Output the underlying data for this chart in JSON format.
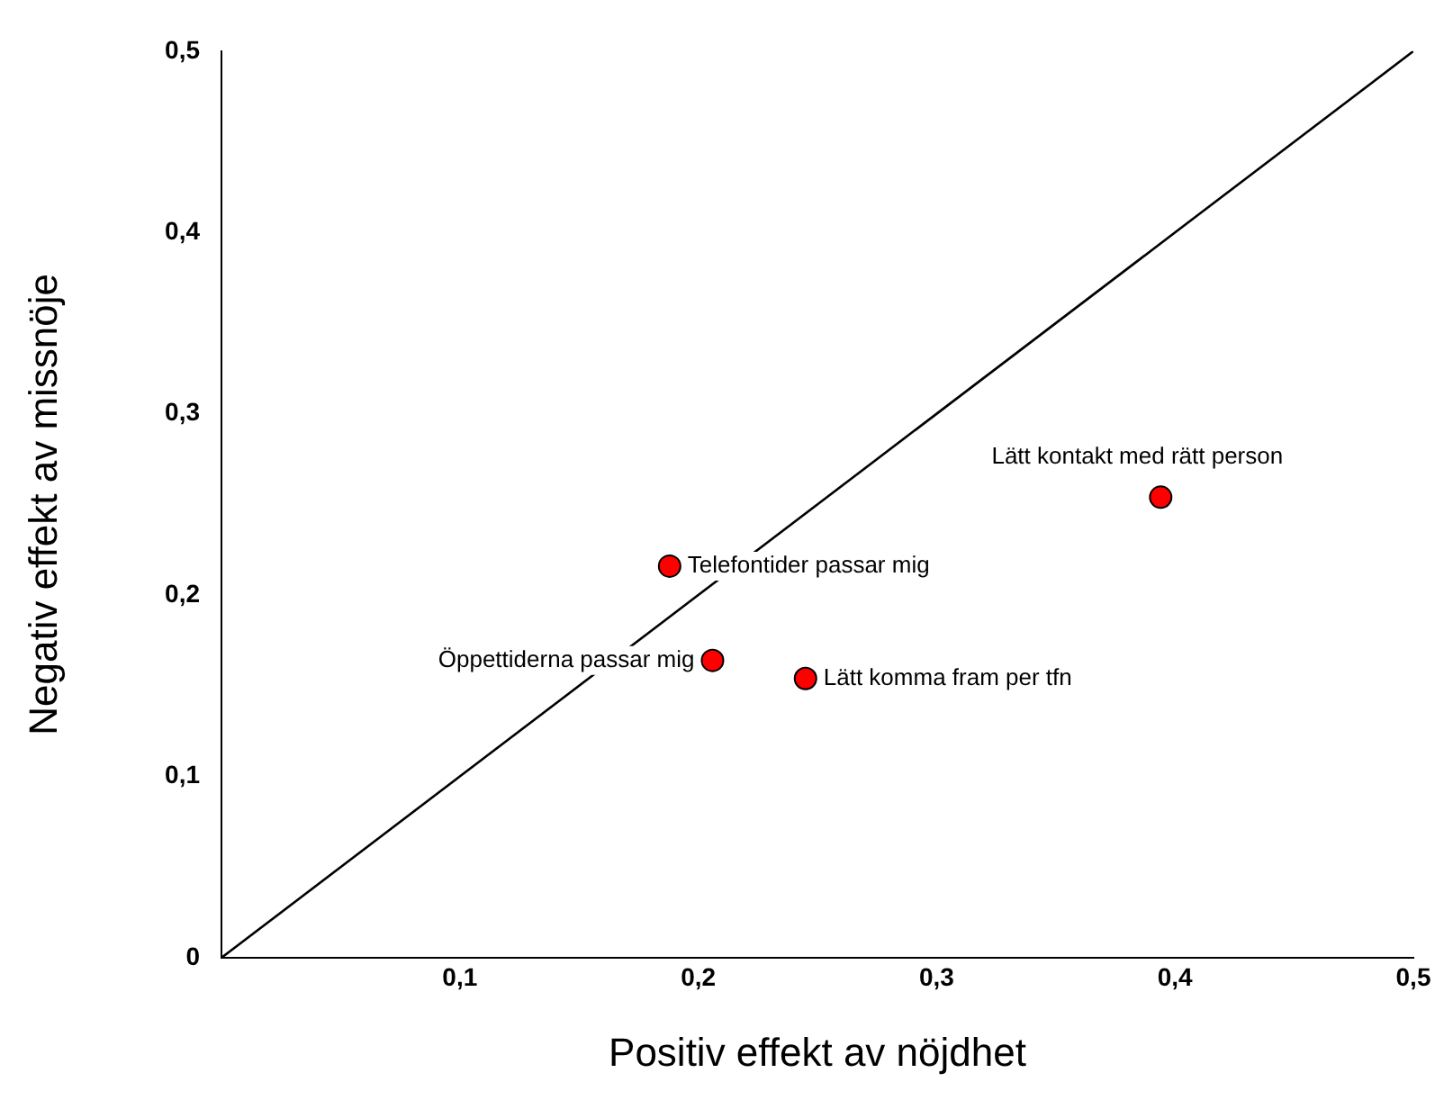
{
  "chart_data": {
    "type": "scatter",
    "xlabel": "Positiv effekt av nöjdhet",
    "ylabel": "Negativ effekt av missnöje",
    "xlim": [
      0,
      0.5
    ],
    "ylim": [
      0,
      0.5
    ],
    "xticks": [
      {
        "value": 0.1,
        "label": "0,1"
      },
      {
        "value": 0.2,
        "label": "0,2"
      },
      {
        "value": 0.3,
        "label": "0,3"
      },
      {
        "value": 0.4,
        "label": "0,4"
      },
      {
        "value": 0.5,
        "label": "0,5"
      }
    ],
    "yticks": [
      {
        "value": 0,
        "label": "0"
      },
      {
        "value": 0.1,
        "label": "0,1"
      },
      {
        "value": 0.2,
        "label": "0,2"
      },
      {
        "value": 0.3,
        "label": "0,3"
      },
      {
        "value": 0.4,
        "label": "0,4"
      },
      {
        "value": 0.5,
        "label": "0,5"
      }
    ],
    "grid": false,
    "legend": false,
    "marker": "circle",
    "series": [
      {
        "type": "scatter",
        "color": "#ff0000",
        "x": [
          0.394,
          0.188,
          0.206,
          0.245
        ],
        "values": [
          0.254,
          0.216,
          0.164,
          0.154
        ]
      },
      {
        "type": "line",
        "color": "#000000",
        "marker": "none",
        "line_style": "solid",
        "x": [
          0,
          0.5
        ],
        "values": [
          0,
          0.5
        ]
      }
    ],
    "annotations": [
      {
        "text": "Lätt kontakt med rätt person",
        "x": 0.394,
        "y": 0.254
      },
      {
        "text": "Telefontider passar mig",
        "x": 0.188,
        "y": 0.216
      },
      {
        "text": "Öppettiderna passar mig",
        "x": 0.206,
        "y": 0.164
      },
      {
        "text": "Lätt komma fram per tfn",
        "x": 0.245,
        "y": 0.154
      }
    ]
  }
}
